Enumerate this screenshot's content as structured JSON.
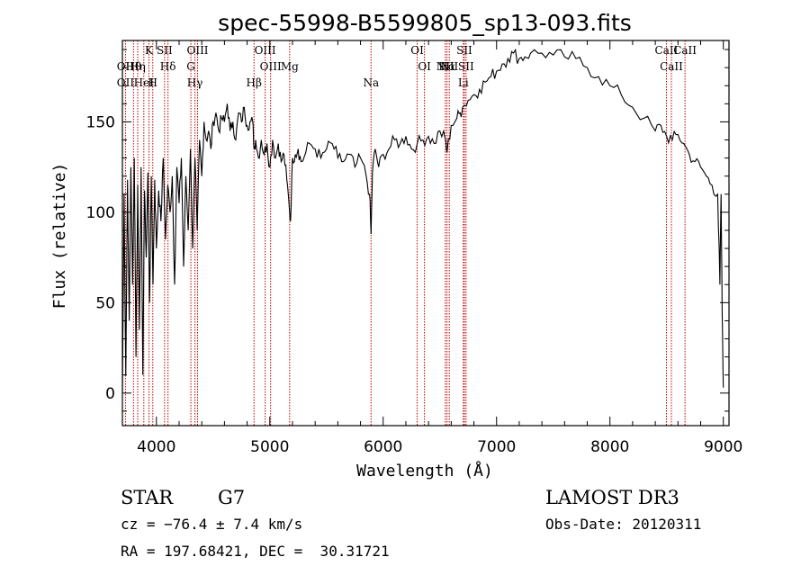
{
  "chart_data": {
    "type": "line",
    "title": "spec-55998-B5599805_sp13-093.fits",
    "xlabel": "Wavelength (Å)",
    "ylabel": "Flux (relative)",
    "xlim": [
      3700,
      9050
    ],
    "ylim": [
      -18,
      195
    ],
    "xticks": [
      4000,
      5000,
      6000,
      7000,
      8000,
      9000
    ],
    "yticks": [
      0,
      50,
      100,
      150
    ],
    "series": [
      {
        "name": "flux",
        "x": [
          3700,
          3715,
          3730,
          3745,
          3760,
          3775,
          3790,
          3805,
          3820,
          3835,
          3850,
          3865,
          3880,
          3895,
          3910,
          3925,
          3940,
          3955,
          3970,
          3985,
          4000,
          4020,
          4040,
          4060,
          4080,
          4100,
          4120,
          4140,
          4160,
          4180,
          4200,
          4220,
          4240,
          4260,
          4280,
          4300,
          4320,
          4340,
          4360,
          4380,
          4400,
          4420,
          4440,
          4460,
          4480,
          4500,
          4525,
          4550,
          4575,
          4600,
          4625,
          4650,
          4675,
          4700,
          4725,
          4750,
          4775,
          4800,
          4825,
          4850,
          4861,
          4875,
          4900,
          4925,
          4950,
          4975,
          5000,
          5025,
          5050,
          5075,
          5100,
          5125,
          5150,
          5175,
          5183,
          5200,
          5225,
          5250,
          5275,
          5300,
          5350,
          5400,
          5450,
          5500,
          5550,
          5600,
          5650,
          5700,
          5750,
          5800,
          5850,
          5880,
          5893,
          5905,
          5930,
          5960,
          6000,
          6050,
          6100,
          6150,
          6200,
          6250,
          6300,
          6350,
          6400,
          6450,
          6500,
          6550,
          6563,
          6600,
          6650,
          6680,
          6700,
          6750,
          6800,
          6850,
          6900,
          6950,
          7000,
          7050,
          7100,
          7150,
          7200,
          7250,
          7300,
          7400,
          7500,
          7600,
          7700,
          7800,
          7900,
          8000,
          8100,
          8200,
          8300,
          8400,
          8450,
          8500,
          8550,
          8600,
          8650,
          8700,
          8750,
          8800,
          8850,
          8900,
          8950,
          8970,
          8980,
          8990,
          9000
        ],
        "values": [
          0,
          110,
          10,
          118,
          40,
          125,
          60,
          130,
          20,
          115,
          35,
          125,
          10,
          112,
          75,
          122,
          50,
          120,
          60,
          118,
          80,
          112,
          95,
          130,
          85,
          115,
          100,
          120,
          60,
          125,
          105,
          130,
          70,
          120,
          90,
          135,
          80,
          130,
          90,
          140,
          120,
          150,
          140,
          145,
          135,
          150,
          155,
          145,
          152,
          150,
          160,
          145,
          150,
          140,
          155,
          150,
          158,
          148,
          150,
          150,
          135,
          140,
          130,
          140,
          132,
          138,
          125,
          140,
          130,
          138,
          128,
          132,
          118,
          100,
          95,
          130,
          132,
          135,
          128,
          130,
          138,
          135,
          130,
          135,
          138,
          130,
          128,
          132,
          125,
          130,
          120,
          110,
          88,
          122,
          135,
          125,
          132,
          135,
          140,
          138,
          142,
          135,
          138,
          140,
          142,
          138,
          145,
          140,
          133,
          148,
          152,
          155,
          158,
          162,
          165,
          168,
          172,
          175,
          178,
          182,
          185,
          188,
          185,
          186,
          188,
          188,
          187,
          186,
          185,
          180,
          175,
          170,
          165,
          158,
          152,
          145,
          148,
          142,
          140,
          143,
          138,
          132,
          128,
          125,
          120,
          115,
          110,
          60,
          110,
          45,
          3
        ]
      }
    ],
    "line_markers": [
      {
        "w": 3727,
        "labels": [
          "OII",
          "OII"
        ]
      },
      {
        "w": 3798,
        "labels": [
          "Hθ"
        ]
      },
      {
        "w": 3835,
        "labels": [
          "Hη"
        ]
      },
      {
        "w": 3889,
        "labels": [
          "HeI"
        ]
      },
      {
        "w": 3934,
        "labels": [
          "K"
        ]
      },
      {
        "w": 3968,
        "labels": [
          "H"
        ]
      },
      {
        "w": 4072,
        "labels": [
          "SII"
        ]
      },
      {
        "w": 4102,
        "labels": [
          "Hδ"
        ]
      },
      {
        "w": 4304,
        "labels": [
          "G"
        ]
      },
      {
        "w": 4340,
        "labels": [
          "Hγ"
        ]
      },
      {
        "w": 4363,
        "labels": [
          "OIII"
        ]
      },
      {
        "w": 4861,
        "labels": [
          "Hβ"
        ]
      },
      {
        "w": 4959,
        "labels": [
          "OIII"
        ]
      },
      {
        "w": 5007,
        "labels": [
          "OIII"
        ]
      },
      {
        "w": 5175,
        "labels": [
          "Mg"
        ]
      },
      {
        "w": 5893,
        "labels": [
          "Na"
        ]
      },
      {
        "w": 6300,
        "labels": [
          "OI"
        ]
      },
      {
        "w": 6364,
        "labels": [
          "OI"
        ]
      },
      {
        "w": 6548,
        "labels": [
          "NII"
        ]
      },
      {
        "w": 6563,
        "labels": [
          "Hα"
        ]
      },
      {
        "w": 6583,
        "labels": [
          "NII"
        ]
      },
      {
        "w": 6707,
        "labels": [
          "Li"
        ]
      },
      {
        "w": 6716,
        "labels": [
          "SII"
        ]
      },
      {
        "w": 6731,
        "labels": [
          "SII"
        ]
      },
      {
        "w": 8498,
        "labels": [
          "CaII"
        ]
      },
      {
        "w": 8542,
        "labels": [
          "CaII"
        ]
      },
      {
        "w": 8662,
        "labels": [
          "CaII"
        ]
      }
    ]
  },
  "info": {
    "class_label": "STAR",
    "subclass_label": "G7",
    "cz_text": "cz = −76.4 ± 7.4 km/s",
    "radec_text": "RA = 197.68421, DEC =  30.31721",
    "survey_text": "LAMOST DR3",
    "obsdate_text": "Obs-Date: 20120311"
  },
  "colors": {
    "spectrum": "#000000",
    "marker": "#c00000",
    "axes": "#000000"
  }
}
